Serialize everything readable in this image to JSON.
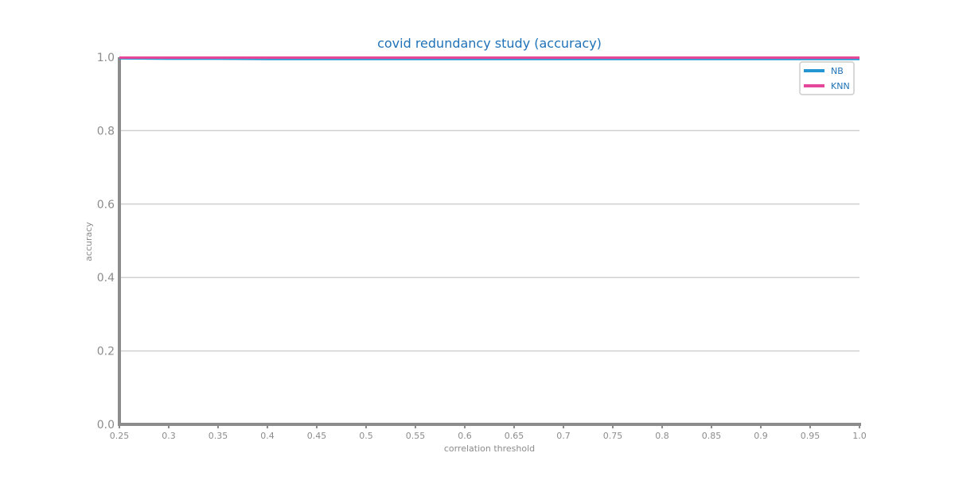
{
  "chart_data": {
    "type": "line",
    "title": "covid redundancy study (accuracy)",
    "xlabel": "correlation threshold",
    "ylabel": "accuracy",
    "xlim": [
      0.25,
      1.0
    ],
    "ylim": [
      0.0,
      1.0
    ],
    "x_ticks": [
      "0.25",
      "0.3",
      "0.35",
      "0.4",
      "0.45",
      "0.5",
      "0.55",
      "0.6",
      "0.65",
      "0.7",
      "0.75",
      "0.8",
      "0.85",
      "0.9",
      "0.95",
      "1.0"
    ],
    "y_ticks": [
      "0.0",
      "0.2",
      "0.4",
      "0.6",
      "0.8",
      "1.0"
    ],
    "grid": "horizontal",
    "legend_position": "top-right",
    "x": [
      0.25,
      0.3,
      0.35,
      0.4,
      0.45,
      0.5,
      0.55,
      0.6,
      0.65,
      0.7,
      0.75,
      0.8,
      0.85,
      0.9,
      0.95,
      1.0
    ],
    "series": [
      {
        "name": "NB",
        "color": "#2596d1",
        "values": [
          0.997,
          0.996,
          0.996,
          0.995,
          0.995,
          0.995,
          0.995,
          0.995,
          0.995,
          0.995,
          0.995,
          0.995,
          0.995,
          0.995,
          0.995,
          0.995
        ]
      },
      {
        "name": "KNN",
        "color": "#e5479b",
        "values": [
          0.999,
          0.999,
          0.999,
          0.999,
          0.999,
          0.999,
          0.999,
          0.999,
          0.999,
          0.999,
          0.999,
          0.999,
          0.999,
          0.999,
          0.999,
          0.999
        ]
      }
    ],
    "colors": {
      "title": "#1f72b8",
      "axis": "#8c8c8c",
      "grid": "#d0d0d0",
      "legend_text": "#1f72b8"
    }
  }
}
